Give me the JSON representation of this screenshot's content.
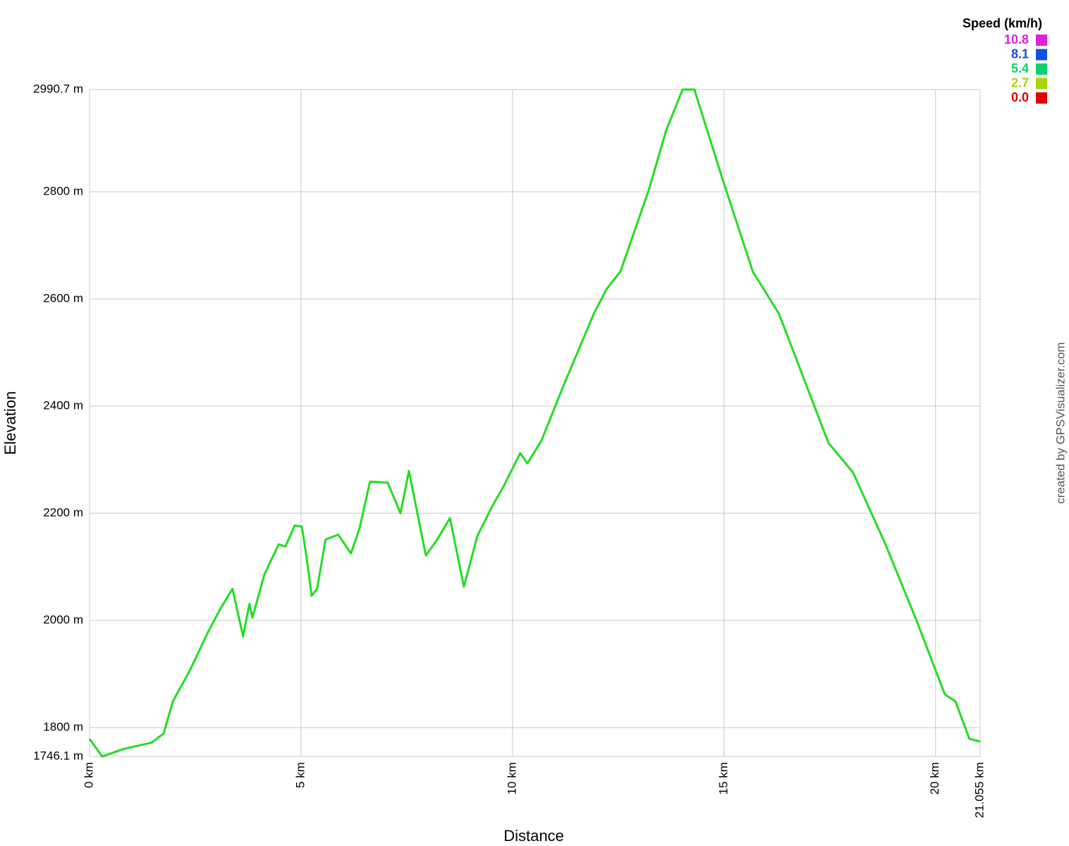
{
  "chart_data": {
    "type": "line",
    "x_label": "Distance",
    "y_label": "Elevation",
    "credit": "created by GPSVisualizer.com",
    "legend": {
      "title": "Speed (km/h)",
      "position": "top-right",
      "items": [
        {
          "label": "10.8",
          "color": "#e020e0"
        },
        {
          "label": "8.1",
          "color": "#1050e0"
        },
        {
          "label": "5.4",
          "color": "#10d070"
        },
        {
          "label": "2.7",
          "color": "#a8d400"
        },
        {
          "label": "0.0",
          "color": "#e00000"
        }
      ]
    },
    "x": [
      0,
      0.3,
      0.8,
      1.47,
      1.75,
      1.97,
      2.38,
      2.8,
      3.08,
      3.38,
      3.63,
      3.78,
      3.85,
      4.13,
      4.47,
      4.63,
      4.85,
      5.02,
      5.13,
      5.25,
      5.38,
      5.58,
      5.88,
      6.18,
      6.38,
      6.63,
      7.05,
      7.35,
      7.55,
      7.95,
      8.22,
      8.52,
      8.85,
      9.17,
      9.52,
      9.8,
      10.18,
      10.35,
      10.68,
      11.22,
      11.92,
      12.22,
      12.55,
      13.22,
      13.63,
      14.02,
      14.3,
      14.97,
      15.68,
      16.3,
      17.47,
      18.05,
      18.8,
      19.55,
      20.22,
      20.47,
      20.8,
      21.055
    ],
    "series": [
      {
        "color": "#22dd22",
        "values": [
          1779,
          1746,
          1760,
          1772,
          1789,
          1849,
          1908,
          1978,
          2020,
          2059,
          1970,
          2031,
          2005,
          2085,
          2142,
          2138,
          2177,
          2175,
          2118,
          2046,
          2059,
          2151,
          2160,
          2125,
          2171,
          2259,
          2257,
          2200,
          2279,
          2121,
          2151,
          2191,
          2063,
          2158,
          2213,
          2252,
          2312,
          2293,
          2335,
          2441,
          2572,
          2618,
          2651,
          2803,
          2914,
          2990.7,
          2990.7,
          2822,
          2651,
          2572,
          2331,
          2276,
          2145,
          2000,
          1862,
          1849,
          1779,
          1774
        ]
      }
    ],
    "xlim": [
      0,
      21.055
    ],
    "ylim": [
      1746.1,
      2990.7
    ],
    "xticks": [
      {
        "value": 0,
        "label": "0 km"
      },
      {
        "value": 5,
        "label": "5 km"
      },
      {
        "value": 10,
        "label": "10 km"
      },
      {
        "value": 15,
        "label": "15 km"
      },
      {
        "value": 20,
        "label": "20 km"
      },
      {
        "value": 21.055,
        "label": "21.055 km"
      }
    ],
    "yticks": [
      {
        "value": 1746.1,
        "label": "1746.1 m"
      },
      {
        "value": 1800,
        "label": "1800 m"
      },
      {
        "value": 2000,
        "label": "2000 m"
      },
      {
        "value": 2200,
        "label": "2200 m"
      },
      {
        "value": 2400,
        "label": "2400 m"
      },
      {
        "value": 2600,
        "label": "2600 m"
      },
      {
        "value": 2800,
        "label": "2800 m"
      },
      {
        "value": 2990.7,
        "label": "2990.7 m"
      }
    ],
    "grid": true
  }
}
